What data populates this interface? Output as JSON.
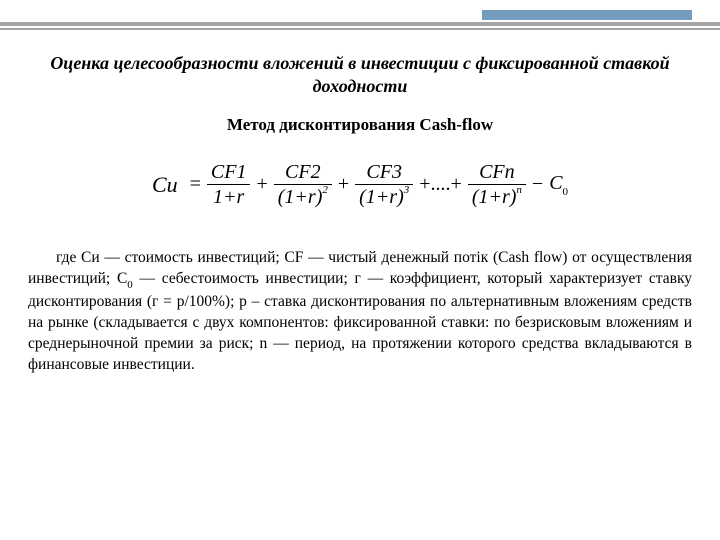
{
  "colors": {
    "rule": "#a6a6a6",
    "accent": "#739cbf",
    "text": "#000000",
    "background": "#ffffff"
  },
  "typography": {
    "family": "Times New Roman",
    "title_fontsize_pt": 14,
    "subtitle_fontsize_pt": 13,
    "formula_fontsize_pt": 15,
    "body_fontsize_pt": 12
  },
  "title": "Оценка целесообразности вложений в инвестиции с фиксированной ставкой доходности",
  "subtitle": "Метод дисконтирования Cash-flow",
  "formula": {
    "lhs": "Си",
    "terms": [
      {
        "num": "CF1",
        "den_base": "1+r",
        "den_exp": ""
      },
      {
        "num": "CF2",
        "den_base": "(1+r)",
        "den_exp": "2"
      },
      {
        "num": "CF3",
        "den_base": "(1+r)",
        "den_exp": "3"
      }
    ],
    "ellipsis": "+....+",
    "last_term": {
      "num": "CFn",
      "den_base": "(1+r)",
      "den_exp": "n"
    },
    "tail_op": "−",
    "tail_var": "C",
    "tail_sub": "0"
  },
  "explain": {
    "p1a": "где Си — стоимость инвестиций; CF — чистый денежный потік (Cash flow) от осуществления инвестиций; С",
    "p1b": " — себестоимость инвестиции; г — коэффициент, который характеризует ставку дисконтирования (г = р/100%); р – ставка дисконтирования по альтернативным вложениям средств на рынке (складывается с двух компонентов: фиксированной ставки: по безрисковым вложениям и среднерыночной премии за риск; n — период, на протяжении которого средства вкладываются в финансовые инвестиции.",
    "c0_sub": "0"
  }
}
